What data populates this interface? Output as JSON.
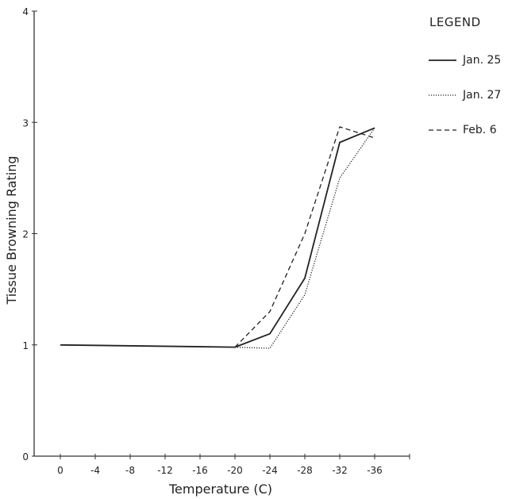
{
  "chart_data": {
    "type": "line",
    "title": "",
    "xlabel": "Temperature (C)",
    "ylabel": "Tissue Browning Rating",
    "x": [
      0,
      -4,
      -8,
      -12,
      -16,
      -20,
      -24,
      -28,
      -32,
      -36
    ],
    "x_tick_labels": [
      "0",
      "-4",
      "-8",
      "-12",
      "-16",
      "-20",
      "-24",
      "-28",
      "-32",
      "-36"
    ],
    "y_ticks": [
      0,
      1,
      2,
      3,
      4
    ],
    "y_tick_labels": [
      "0",
      "1",
      "2",
      "3",
      "4"
    ],
    "xlim": [
      3,
      -40
    ],
    "ylim": [
      0,
      4
    ],
    "grid": false,
    "legend_title": "LEGEND",
    "legend_position": "top-right",
    "series": [
      {
        "name": "Jan. 25",
        "style": "solid",
        "points": [
          [
            0,
            1.0
          ],
          [
            -20,
            0.98
          ],
          [
            -24,
            1.1
          ],
          [
            -28,
            1.6
          ],
          [
            -32,
            2.82
          ],
          [
            -36,
            2.95
          ]
        ]
      },
      {
        "name": "Jan. 27",
        "style": "dotted",
        "points": [
          [
            -20,
            0.98
          ],
          [
            -24,
            0.97
          ],
          [
            -28,
            1.45
          ],
          [
            -32,
            2.5
          ],
          [
            -36,
            2.95
          ]
        ]
      },
      {
        "name": "Feb. 6",
        "style": "dashed",
        "points": [
          [
            -20,
            0.98
          ],
          [
            -24,
            1.3
          ],
          [
            -28,
            2.0
          ],
          [
            -32,
            2.96
          ],
          [
            -36,
            2.86
          ]
        ]
      }
    ]
  }
}
